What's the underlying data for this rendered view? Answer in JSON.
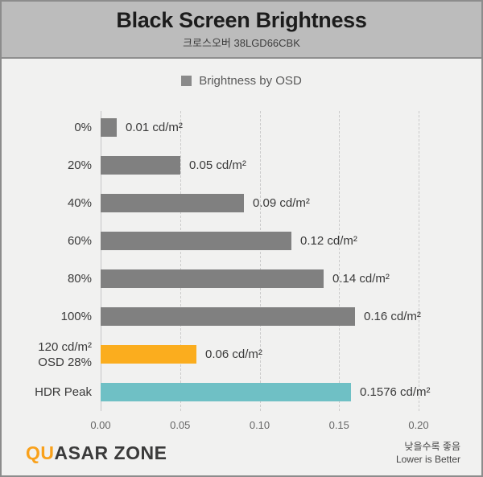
{
  "header": {
    "title": "Black Screen Brightness",
    "subtitle": "크로스오버 38LGD66CBK"
  },
  "legend": {
    "label": "Brightness by OSD",
    "swatch_color": "#8a8a8a"
  },
  "chart_data": {
    "type": "bar",
    "orientation": "horizontal",
    "title": "Black Screen Brightness",
    "subtitle": "크로스오버 38LGD66CBK",
    "legend": [
      "Brightness by OSD"
    ],
    "value_unit": "cd/m²",
    "xlim": [
      0,
      0.2
    ],
    "x_ticks": [
      "0.00",
      "0.05",
      "0.10",
      "0.15",
      "0.20"
    ],
    "grid": "dashed-vertical",
    "rows": [
      {
        "label": "0%",
        "label2": "",
        "value": 0.01,
        "display": "0.01 cd/m²",
        "color": "#808080"
      },
      {
        "label": "20%",
        "label2": "",
        "value": 0.05,
        "display": "0.05 cd/m²",
        "color": "#808080"
      },
      {
        "label": "40%",
        "label2": "",
        "value": 0.09,
        "display": "0.09 cd/m²",
        "color": "#808080"
      },
      {
        "label": "60%",
        "label2": "",
        "value": 0.12,
        "display": "0.12 cd/m²",
        "color": "#808080"
      },
      {
        "label": "80%",
        "label2": "",
        "value": 0.14,
        "display": "0.14 cd/m²",
        "color": "#808080"
      },
      {
        "label": "100%",
        "label2": "",
        "value": 0.16,
        "display": "0.16 cd/m²",
        "color": "#808080"
      },
      {
        "label": "120 cd/m²",
        "label2": "OSD 28%",
        "value": 0.06,
        "display": "0.06 cd/m²",
        "color": "#fbad1e"
      },
      {
        "label": "HDR Peak",
        "label2": "",
        "value": 0.1576,
        "display": "0.1576 cd/m²",
        "color": "#6fc0c5"
      }
    ]
  },
  "footer": {
    "logo_accent": "QU",
    "logo_rest": "ASAR ZONE",
    "note_line1": "낮을수록 좋음",
    "note_line2": "Lower is Better"
  }
}
